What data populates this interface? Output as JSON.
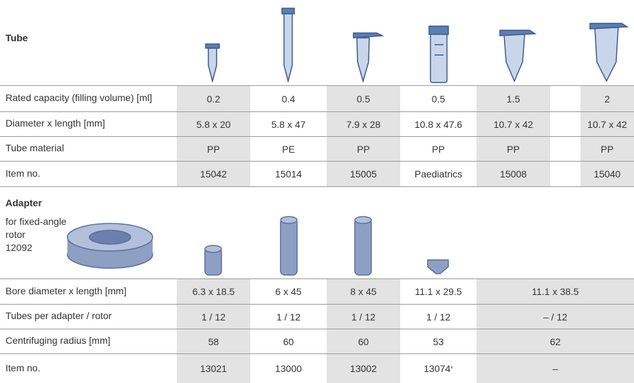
{
  "tube": {
    "title": "Tube",
    "rows": [
      {
        "label": "Rated capacity (filling volume) [ml]",
        "cells": [
          "0.2",
          "0.4",
          "0.5",
          "0.5",
          "1.5",
          "2"
        ]
      },
      {
        "label": "Diameter x length [mm]",
        "cells": [
          "5.8 x 20",
          "5.8 x 47",
          "7.9 x 28",
          "10.8 x 47.6",
          "10.7 x 42",
          "10.7 x 42"
        ]
      },
      {
        "label": "Tube material",
        "cells": [
          "PP",
          "PE",
          "PP",
          "PP",
          "PP",
          "PP"
        ]
      },
      {
        "label": "Item no.",
        "cells": [
          "15042",
          "15014",
          "15005",
          "Paediatrics",
          "15008",
          "15040"
        ]
      }
    ]
  },
  "adapter": {
    "title": "Adapter",
    "description": [
      "for fixed-angle",
      "rotor",
      "12092"
    ],
    "rows": [
      {
        "label": "Bore diameter x length [mm]",
        "cells": [
          "6.3 x 18.5",
          "6 x 45",
          "8 x 45",
          "11.1 x 29.5",
          "11.1 x 38.5"
        ]
      },
      {
        "label": "Tubes per adapter / rotor",
        "cells": [
          "1 / 12",
          "1 / 12",
          "1 / 12",
          "1 / 12",
          "– / 12"
        ]
      },
      {
        "label": "Centrifuging radius [mm]",
        "cells": [
          "58",
          "60",
          "60",
          "53",
          "62"
        ]
      },
      {
        "label": "Item no.",
        "cells": [
          "13021",
          "13000",
          "13002",
          {
            "text": "13074",
            "sup": "*"
          },
          "–"
        ]
      }
    ]
  }
}
